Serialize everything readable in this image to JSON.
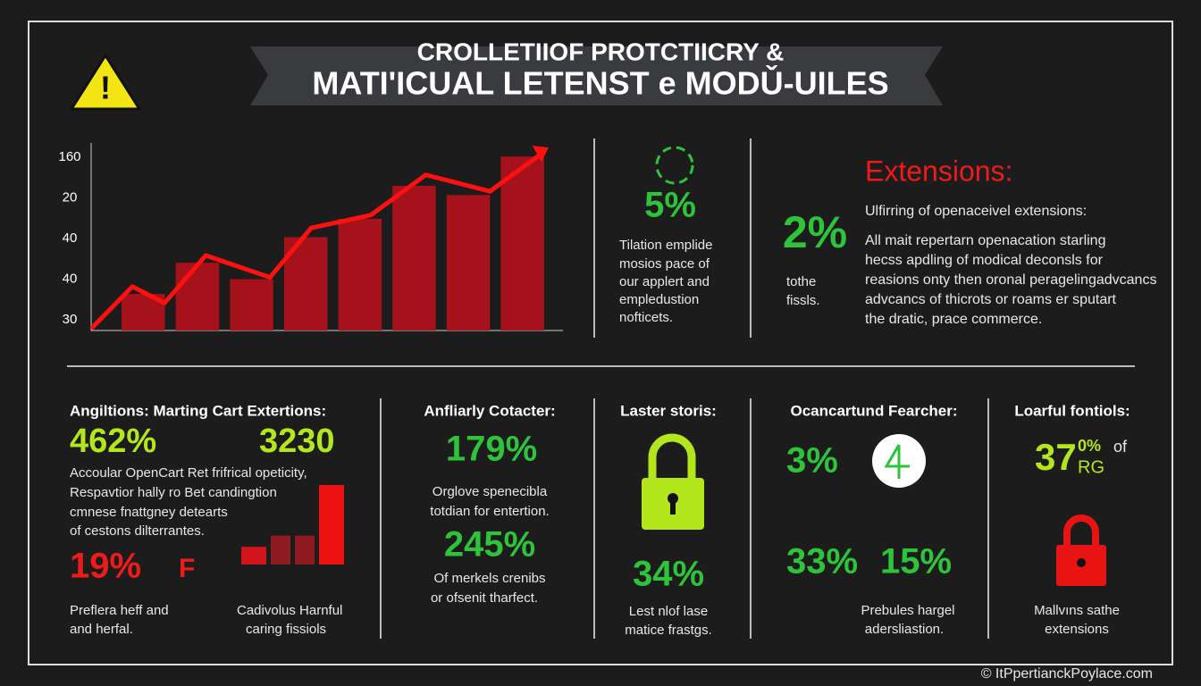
{
  "header": {
    "title_line1": "CROLLETIIOF PROTCTIICRY &",
    "title_line2": "MATI'ICUAL LETENST e MODǓ-UILES"
  },
  "chart_data": {
    "type": "bar",
    "y_axis_labels": [
      "160",
      "20",
      "40",
      "40",
      "30"
    ],
    "categories": [
      null,
      null,
      null,
      null,
      null,
      null,
      null,
      null
    ],
    "values": [
      20,
      37,
      28,
      51,
      61,
      79,
      74,
      95
    ],
    "color": "#a5121c",
    "ylim": [
      0,
      100
    ],
    "line": {
      "color": "#ff1010",
      "xlim": [
        0,
        100
      ],
      "x": [
        0,
        9,
        16,
        25,
        39,
        48,
        61,
        73,
        87,
        99
      ],
      "values": [
        1,
        24,
        15,
        41,
        29,
        56,
        63,
        85,
        76,
        98
      ]
    }
  },
  "stat_top_mid": {
    "value": "5%",
    "text": [
      "Tilation emplide",
      "mosios pace of",
      "our applert and",
      "empledustion",
      "nofticets."
    ]
  },
  "stat_top_right": {
    "value": "2%",
    "text": [
      "tothe",
      "fissls."
    ]
  },
  "extensions": {
    "title": "Extensions:",
    "subtitle": "Ulfirring of openaceivel extensions:",
    "text": [
      "All mait repertarn openacation starling",
      "hecss apdling of modical deconsls for",
      "reasions onty then oronal peragelingadvcancs",
      "advcancs of thicrots or roams er sputart",
      "the dratic, prace commerce."
    ]
  },
  "section1": {
    "title": "Angiltions: Marting Cart Extertions:",
    "value_a": "462%",
    "value_b": "3230",
    "text": [
      "Accoular OpenCart Ret frifrical opeticity,",
      "Respavtior hally ro Bet candingtion",
      "cmnese fnattgney detearts",
      "of cestons dilterrantes."
    ],
    "value_c": "19%",
    "value_d": "F",
    "caption_a": [
      "Preflera heff and",
      "and herfal."
    ],
    "caption_b": [
      "Cadivolus Harnful",
      "caring fissiols"
    ],
    "mini_chart": {
      "type": "bar",
      "values": [
        22,
        36,
        36,
        99
      ],
      "colors": [
        "#d0141a",
        "#8e1a22",
        "#8e1a22",
        "#ee1111"
      ],
      "ylim": [
        0,
        100
      ]
    }
  },
  "section2": {
    "title": "Anfliarly Cotacter:",
    "value_a": "179%",
    "text_a": [
      "Orglove spenecibla",
      "totdian for entertion."
    ],
    "value_b": "245%",
    "text_b": [
      "Of merkels crenibs",
      "or ofsenit tharfect."
    ]
  },
  "section3": {
    "title": "Laster storis:",
    "value": "34%",
    "text": [
      "Lest nlof lase",
      "matice frastgs."
    ]
  },
  "section4": {
    "title": "Ocancartund Fearcher:",
    "value_a": "3%",
    "value_b": "33%",
    "value_c": "15%",
    "text": [
      "Prebules hargel",
      "adersliastion."
    ]
  },
  "section5": {
    "title": "Loarful fontiols:",
    "value": "37",
    "sup": "0%",
    "sub": "RG",
    "of": "of",
    "text": [
      "Mallvıns sathe",
      "extensions"
    ]
  },
  "footer": "© ItPpertianckPoylace.com"
}
